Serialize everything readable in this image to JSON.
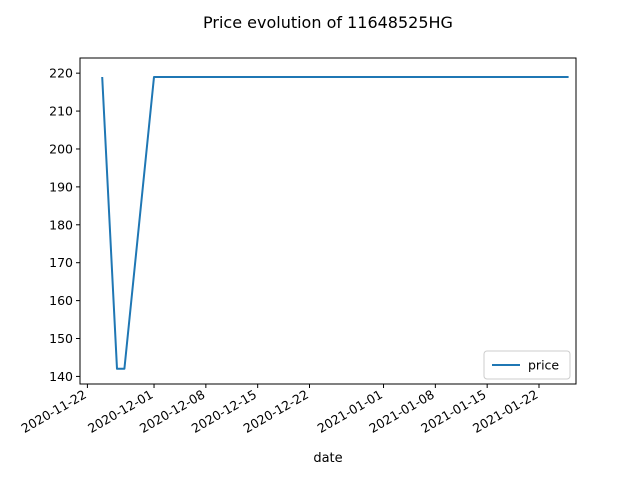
{
  "chart_data": {
    "type": "line",
    "title": "Price evolution of 11648525HG",
    "xlabel": "date",
    "ylabel": "",
    "xlim": [
      "2020-11-21",
      "2021-01-27"
    ],
    "ylim": [
      138,
      224
    ],
    "x_ticks": [
      "2020-11-22",
      "2020-12-01",
      "2020-12-08",
      "2020-12-15",
      "2020-12-22",
      "2021-01-01",
      "2021-01-08",
      "2021-01-15",
      "2021-01-22"
    ],
    "y_ticks": [
      140,
      150,
      160,
      170,
      180,
      190,
      200,
      210,
      220
    ],
    "series": [
      {
        "name": "price",
        "color": "#1f77b4",
        "x": [
          "2020-11-24",
          "2020-11-26",
          "2020-11-27",
          "2020-12-01",
          "2021-01-26"
        ],
        "y": [
          219,
          142,
          142,
          219,
          219
        ]
      }
    ],
    "legend": {
      "position": "lower right",
      "entries": [
        "price"
      ]
    },
    "grid": false
  }
}
